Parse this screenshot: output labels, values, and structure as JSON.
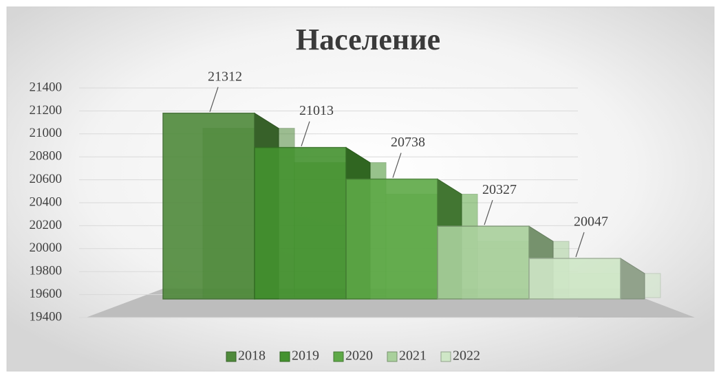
{
  "chart_data": {
    "type": "bar3d",
    "title": "Население",
    "series": [
      {
        "name": "2018",
        "color": "#4f8a3b",
        "values": [
          21312
        ]
      },
      {
        "name": "2019",
        "color": "#44922f",
        "values": [
          21013
        ]
      },
      {
        "name": "2020",
        "color": "#5ea947",
        "values": [
          20738
        ]
      },
      {
        "name": "2021",
        "color": "#a9d09c",
        "values": [
          20327
        ]
      },
      {
        "name": "2022",
        "color": "#cfe7c7",
        "values": [
          20047
        ]
      }
    ],
    "ylim": [
      19400,
      21400
    ],
    "yticks": [
      19400,
      19600,
      19800,
      20000,
      20200,
      20400,
      20600,
      20800,
      21000,
      21200,
      21400
    ],
    "grid": true,
    "legend": "bottom",
    "data_labels": true
  }
}
